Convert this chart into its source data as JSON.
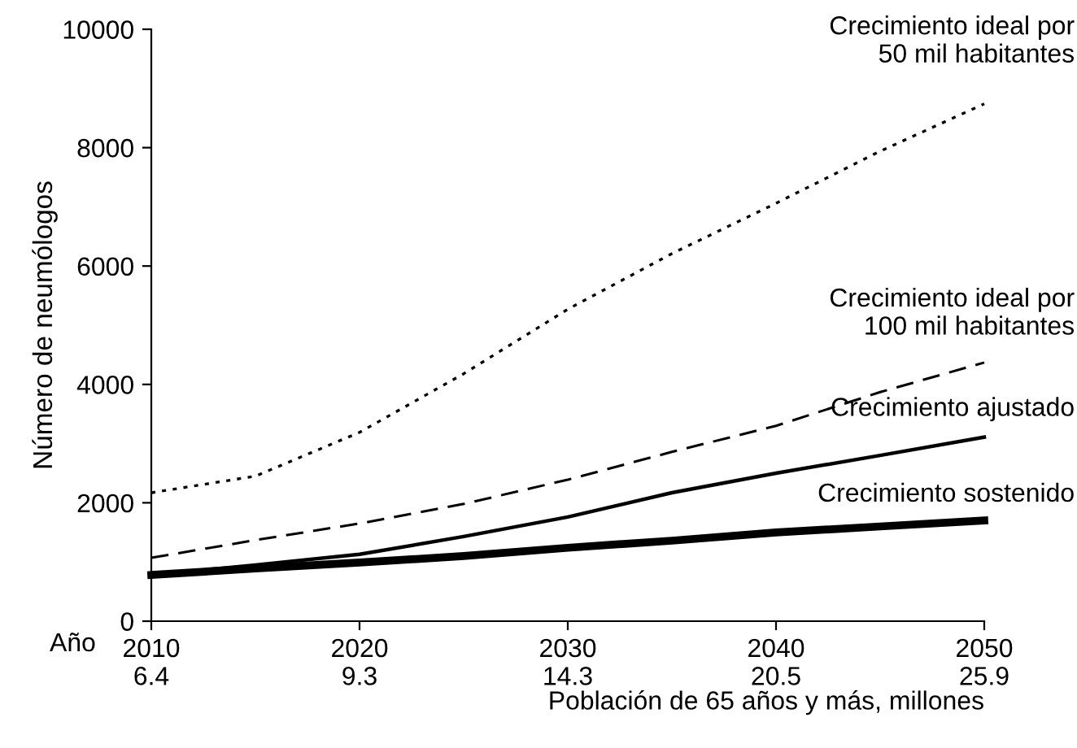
{
  "chart_data": {
    "type": "line",
    "ylabel": "Número de neumólogos",
    "xlabel": "Población de 65 años y más, millones",
    "annotations": [
      "Año"
    ],
    "categories": [
      "2010\n6.4",
      null,
      "2020\n9.3",
      null,
      "2030\n14.3",
      null,
      "2040\n20.5",
      null,
      "2050\n25.9"
    ],
    "ylim": [
      0,
      10000
    ],
    "yticks": [
      0,
      2000,
      4000,
      6000,
      8000,
      10000
    ],
    "grid": false,
    "legend": false,
    "marker": "none",
    "series": [
      {
        "name": "Crecimiento ideal por\n50 mil habitantes",
        "color": "#000000",
        "line_style": "dotted",
        "values": [
          2170,
          2450,
          3190,
          4180,
          5270,
          6210,
          7060,
          7940,
          8740
        ]
      },
      {
        "name": "Crecimiento ideal por\n100 mil habitantes",
        "color": "#000000",
        "line_style": "dashed",
        "values": [
          1070,
          1370,
          1650,
          1980,
          2390,
          2860,
          3300,
          3870,
          4370
        ]
      },
      {
        "name": "Crecimiento ajustado",
        "color": "#000000",
        "line_style": "solid",
        "values": [
          780,
          950,
          1130,
          1430,
          1760,
          2170,
          2500,
          2800,
          3110
        ]
      },
      {
        "name": "Crecimiento sostenido",
        "color": "#000000",
        "line_style": "solid",
        "values": [
          780,
          890,
          990,
          1100,
          1240,
          1360,
          1500,
          1600,
          1700
        ]
      }
    ]
  }
}
